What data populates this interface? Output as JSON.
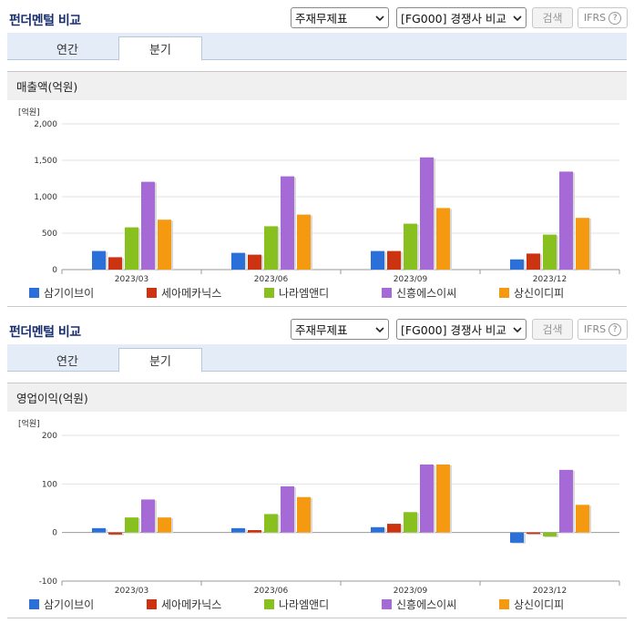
{
  "panels": [
    {
      "title": "펀더멘털 비교",
      "select_stock": "주재무제표",
      "select_compare": "[FG000] 경쟁사 비교",
      "search_label": "검색",
      "ifrs_label": "IFRS",
      "help_label": "?",
      "tabs": [
        {
          "label": "연간",
          "active": false
        },
        {
          "label": "분기",
          "active": true
        }
      ],
      "section_title": "매출액(억원)",
      "unit_label": "[억원]"
    },
    {
      "title": "펀더멘털 비교",
      "select_stock": "주재무제표",
      "select_compare": "[FG000] 경쟁사 비교",
      "search_label": "검색",
      "ifrs_label": "IFRS",
      "help_label": "?",
      "tabs": [
        {
          "label": "연간",
          "active": false
        },
        {
          "label": "분기",
          "active": true
        }
      ],
      "section_title": "영업이익(억원)",
      "unit_label": "[억원]"
    }
  ],
  "colors": {
    "series": [
      "#2b6fd8",
      "#cc3311",
      "#88c020",
      "#a66ad6",
      "#f59a10"
    ]
  },
  "chart_data": [
    {
      "type": "bar",
      "title": "매출액(억원)",
      "ylabel": "[억원]",
      "categories": [
        "2023/03",
        "2023/06",
        "2023/09",
        "2023/12"
      ],
      "ylim": [
        0,
        2000
      ],
      "yticks": [
        0,
        500,
        1000,
        1500,
        2000
      ],
      "ytick_labels": [
        "0",
        "500",
        "1,000",
        "1,500",
        "2,000"
      ],
      "grid": true,
      "legend": "bottom",
      "series": [
        {
          "name": "삼기이브이",
          "values": [
            255,
            230,
            255,
            140
          ]
        },
        {
          "name": "세아메카닉스",
          "values": [
            170,
            205,
            255,
            220
          ]
        },
        {
          "name": "나라엠앤디",
          "values": [
            580,
            595,
            630,
            480
          ]
        },
        {
          "name": "신흥에스이씨",
          "values": [
            1205,
            1280,
            1540,
            1345
          ]
        },
        {
          "name": "상신이디피",
          "values": [
            685,
            755,
            845,
            710
          ]
        }
      ]
    },
    {
      "type": "bar",
      "title": "영업이익(억원)",
      "ylabel": "[억원]",
      "categories": [
        "2023/03",
        "2023/06",
        "2023/09",
        "2023/12"
      ],
      "ylim": [
        -100,
        200
      ],
      "yticks": [
        -100,
        0,
        100,
        200
      ],
      "ytick_labels": [
        "-100",
        "0",
        "100",
        "200"
      ],
      "grid": true,
      "legend": "bottom",
      "series": [
        {
          "name": "삼기이브이",
          "values": [
            9,
            9,
            11,
            -21
          ]
        },
        {
          "name": "세아메카닉스",
          "values": [
            -4,
            5,
            18,
            -3
          ]
        },
        {
          "name": "나라엠앤디",
          "values": [
            31,
            38,
            42,
            -8
          ]
        },
        {
          "name": "신흥에스이씨",
          "values": [
            68,
            95,
            140,
            129
          ]
        },
        {
          "name": "상신이디피",
          "values": [
            31,
            73,
            140,
            57
          ]
        }
      ]
    }
  ]
}
